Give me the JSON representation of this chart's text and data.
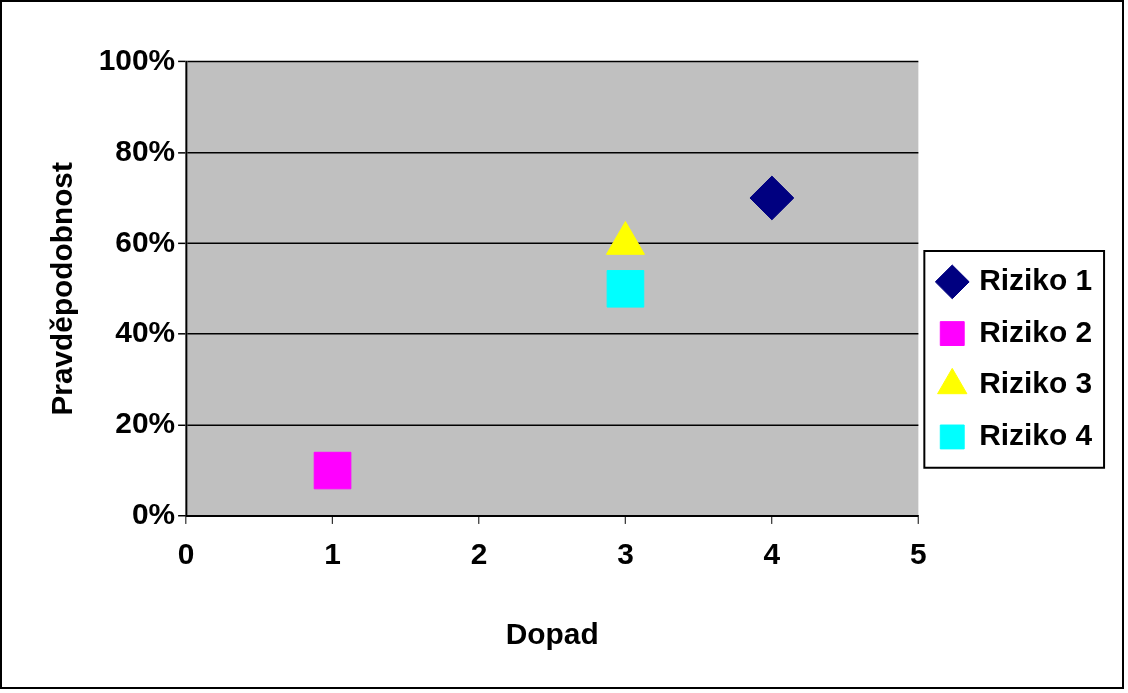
{
  "chart_data": {
    "type": "scatter",
    "xlabel": "Dopad",
    "ylabel": "Pravděpodobnost",
    "xlim": [
      0,
      5
    ],
    "xticks": [
      0,
      1,
      2,
      3,
      4,
      5
    ],
    "ylim": [
      0,
      100
    ],
    "yticks": [
      {
        "value": 0,
        "label": "0%"
      },
      {
        "value": 20,
        "label": "20%"
      },
      {
        "value": 40,
        "label": "40%"
      },
      {
        "value": 60,
        "label": "60%"
      },
      {
        "value": 80,
        "label": "80%"
      },
      {
        "value": 100,
        "label": "100%"
      }
    ],
    "grid": "y",
    "legend": "right",
    "series": [
      {
        "name": "Riziko 1",
        "color": "#000080",
        "marker": "diamond",
        "x": [
          4
        ],
        "values": [
          70
        ]
      },
      {
        "name": "Riziko 2",
        "color": "#ff00ff",
        "marker": "square",
        "x": [
          1
        ],
        "values": [
          10
        ]
      },
      {
        "name": "Riziko 3",
        "color": "#ffff00",
        "marker": "triangle",
        "x": [
          3
        ],
        "values": [
          60
        ]
      },
      {
        "name": "Riziko 4",
        "color": "#00ffff",
        "marker": "square",
        "x": [
          3
        ],
        "values": [
          50
        ]
      }
    ]
  }
}
